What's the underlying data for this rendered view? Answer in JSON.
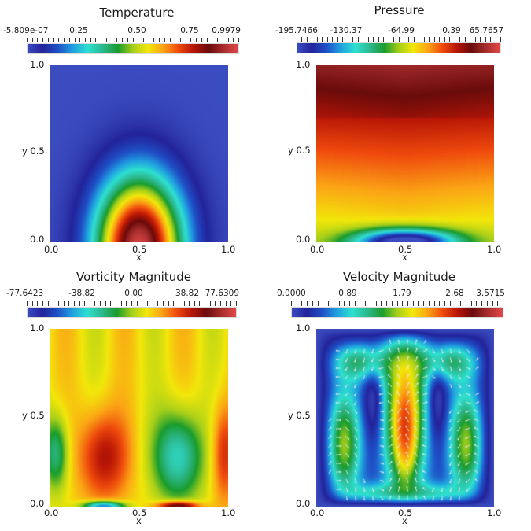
{
  "colormap": [
    "#3b4cc0",
    "#23239b",
    "#1f4fc6",
    "#20a0e0",
    "#2ee0d0",
    "#2cb88e",
    "#1a9c2e",
    "#a6cf1a",
    "#f2e70a",
    "#fba415",
    "#ef4b0d",
    "#b81606",
    "#6a0b0b",
    "#a72d2d",
    "#e04848"
  ],
  "panels": [
    {
      "title": "Temperature",
      "cbar_labels": [
        "-5.809e-07",
        "0.25",
        "0.50",
        "0.75",
        "0.9979"
      ],
      "y_labels": [
        "1.0",
        "y 0.5",
        "0.0"
      ],
      "x_labels": [
        "0.0",
        "0.5",
        "1.0"
      ],
      "x_name": "x",
      "field": "temperature"
    },
    {
      "title": "Pressure",
      "cbar_labels": [
        "-195.7466",
        "-130.37",
        "-64.99",
        "0.39",
        "65.7657"
      ],
      "y_labels": [
        "1.0",
        "y 0.5",
        "0.0"
      ],
      "x_labels": [
        "0.0",
        "0.5",
        "1.0"
      ],
      "x_name": "x",
      "field": "pressure"
    },
    {
      "title": "Vorticity Magnitude",
      "cbar_labels": [
        "-77.6423",
        "-38.82",
        "0.00",
        "38.82",
        "77.6309"
      ],
      "y_labels": [
        "1.0",
        "y 0.5",
        "0.0"
      ],
      "x_labels": [
        "0.0",
        "0.5",
        "1.0"
      ],
      "x_name": "x",
      "field": "vorticity"
    },
    {
      "title": "Velocity Magnitude",
      "cbar_labels": [
        "0.0000",
        "0.89",
        "1.79",
        "2.68",
        "3.5715"
      ],
      "y_labels": [
        "1.0",
        "y 0.5",
        "0.0"
      ],
      "x_labels": [
        "0.0",
        "0.5",
        "1.0"
      ],
      "x_name": "x",
      "field": "velocity"
    }
  ],
  "chart_data": [
    {
      "type": "heatmap",
      "title": "Temperature",
      "xlabel": "x",
      "ylabel": "y",
      "xlim": [
        0,
        1
      ],
      "ylim": [
        0,
        1
      ],
      "colorbar_range": [
        -5.809e-07,
        0.9979
      ],
      "colorbar_ticks": [
        "-5.809e-07",
        "0.25",
        "0.50",
        "0.75",
        "0.9979"
      ]
    },
    {
      "type": "heatmap",
      "title": "Pressure",
      "xlabel": "x",
      "ylabel": "y",
      "xlim": [
        0,
        1
      ],
      "ylim": [
        0,
        1
      ],
      "colorbar_range": [
        -195.7466,
        65.7657
      ],
      "colorbar_ticks": [
        "-195.7466",
        "-130.37",
        "-64.99",
        "0.39",
        "65.7657"
      ]
    },
    {
      "type": "heatmap",
      "title": "Vorticity Magnitude",
      "xlabel": "x",
      "ylabel": "y",
      "xlim": [
        0,
        1
      ],
      "ylim": [
        0,
        1
      ],
      "colorbar_range": [
        -77.6423,
        77.6309
      ],
      "colorbar_ticks": [
        "-77.6423",
        "-38.82",
        "0.00",
        "38.82",
        "77.6309"
      ]
    },
    {
      "type": "heatmap",
      "title": "Velocity Magnitude",
      "xlabel": "x",
      "ylabel": "y",
      "xlim": [
        0,
        1
      ],
      "ylim": [
        0,
        1
      ],
      "colorbar_range": [
        0.0,
        3.5715
      ],
      "colorbar_ticks": [
        "0.0000",
        "0.89",
        "1.79",
        "2.68",
        "3.5715"
      ]
    }
  ]
}
